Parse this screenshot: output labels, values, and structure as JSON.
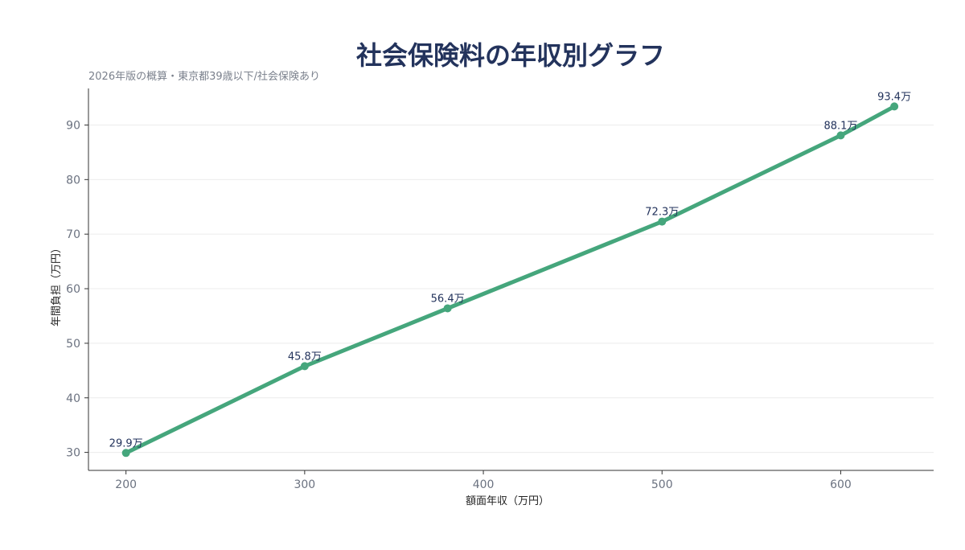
{
  "chart_data": {
    "type": "line",
    "title": "社会保険料の年収別グラフ",
    "subtitle": "2026年版の概算・東京都39歳以下/社会保険あり",
    "xlabel": "額面年収（万円）",
    "ylabel": "年間負担（万円）",
    "x": [
      200,
      300,
      380,
      500,
      600,
      630
    ],
    "series": [
      {
        "values": [
          29.9,
          45.8,
          56.4,
          72.3,
          88.1,
          93.4
        ],
        "labels": [
          "29.9万",
          "45.8万",
          "56.4万",
          "72.3万",
          "88.1万",
          "93.4万"
        ]
      }
    ],
    "xlim": [
      179,
      652
    ],
    "ylim": [
      26.7,
      96.7
    ],
    "xticks": [
      200,
      300,
      400,
      500,
      600
    ],
    "xtick_labels": [
      "200",
      "300",
      "400",
      "500",
      "600"
    ],
    "yticks": [
      30,
      40,
      50,
      60,
      70,
      80,
      90
    ],
    "ytick_labels": [
      "30",
      "40",
      "50",
      "60",
      "70",
      "80",
      "90"
    ],
    "grid": "horizontal",
    "legend": "none",
    "colors": {
      "line": "#45a67c",
      "title": "#23335c",
      "grid": "#ececec",
      "axis": "#333333"
    }
  }
}
